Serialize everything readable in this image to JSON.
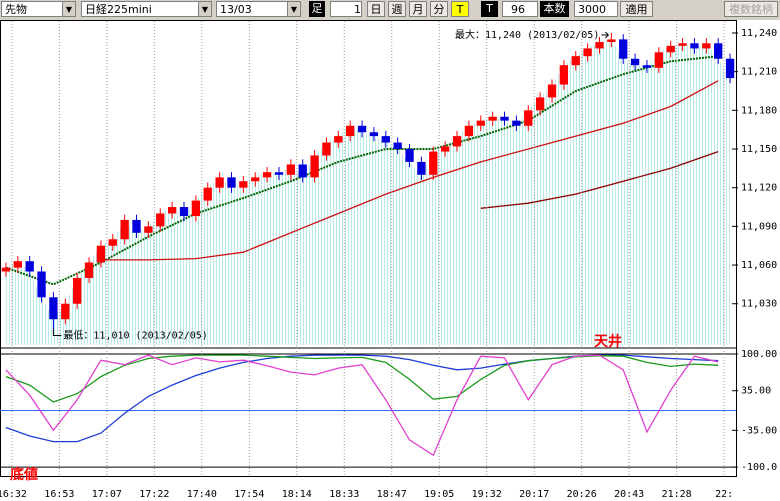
{
  "toolbar": {
    "market": "先物",
    "symbol": "日経225mini",
    "contract": "13/03",
    "bar_label": "足",
    "bar_value": "1",
    "periods": [
      "日",
      "週",
      "月",
      "分"
    ],
    "tick_buttons": [
      "T",
      "T"
    ],
    "count": "96",
    "count_label": "本数",
    "bars": "3000",
    "apply": "適用",
    "multi": "複数銘柄"
  },
  "chart_data": [
    {
      "type": "candlestick",
      "annotations": [
        "最大：11,240 (2013/02/05)",
        "最低：11,010 (2013/02/05)"
      ],
      "x": [
        0,
        2,
        4,
        6,
        8,
        10,
        12,
        14,
        16,
        18,
        20,
        22,
        24,
        26,
        28,
        30,
        32,
        34,
        36,
        38,
        40,
        42,
        44,
        46,
        48,
        50,
        52,
        54,
        56,
        58,
        60,
        62,
        64,
        66,
        68,
        70,
        72,
        74,
        76,
        78,
        80,
        82,
        84,
        86,
        88,
        90,
        92,
        94,
        96,
        98,
        100,
        102,
        104,
        106,
        108,
        110,
        112,
        114,
        116,
        118,
        120,
        122
      ],
      "open": [
        11055,
        11058,
        11063,
        11055,
        11035,
        11018,
        11030,
        11050,
        11062,
        11075,
        11080,
        11095,
        11085,
        11090,
        11100,
        11105,
        11098,
        11110,
        11120,
        11128,
        11120,
        11125,
        11128,
        11132,
        11130,
        11138,
        11128,
        11145,
        11155,
        11160,
        11168,
        11163,
        11160,
        11155,
        11150,
        11140,
        11130,
        11148,
        11152,
        11160,
        11168,
        11172,
        11175,
        11172,
        11168,
        11180,
        11190,
        11200,
        11215,
        11222,
        11228,
        11233,
        11235,
        11220,
        11215,
        11213,
        11225,
        11230,
        11232,
        11228,
        11232,
        11220
      ],
      "high": [
        11062,
        11067,
        11067,
        11059,
        11039,
        11034,
        11054,
        11066,
        11079,
        11084,
        11099,
        11099,
        11094,
        11104,
        11109,
        11109,
        11114,
        11124,
        11132,
        11132,
        11129,
        11132,
        11136,
        11136,
        11142,
        11142,
        11149,
        11159,
        11164,
        11172,
        11172,
        11167,
        11164,
        11159,
        11154,
        11144,
        11152,
        11156,
        11164,
        11172,
        11176,
        11179,
        11179,
        11176,
        11184,
        11194,
        11204,
        11219,
        11226,
        11232,
        11237,
        11240,
        11239,
        11224,
        11219,
        11229,
        11234,
        11236,
        11236,
        11236,
        11236,
        11224
      ],
      "low": [
        11051,
        11054,
        11051,
        11031,
        11010,
        11014,
        11026,
        11046,
        11058,
        11071,
        11076,
        11081,
        11081,
        11086,
        11096,
        11094,
        11094,
        11106,
        11116,
        11116,
        11116,
        11121,
        11124,
        11126,
        11126,
        11124,
        11124,
        11141,
        11151,
        11156,
        11159,
        11156,
        11151,
        11146,
        11136,
        11126,
        11126,
        11144,
        11148,
        11156,
        11164,
        11168,
        11168,
        11164,
        11164,
        11176,
        11186,
        11196,
        11211,
        11218,
        11224,
        11229,
        11216,
        11211,
        11209,
        11209,
        11221,
        11226,
        11224,
        11224,
        11216,
        11201
      ],
      "close": [
        11058,
        11063,
        11055,
        11035,
        11018,
        11030,
        11050,
        11062,
        11075,
        11080,
        11095,
        11085,
        11090,
        11100,
        11105,
        11098,
        11110,
        11120,
        11128,
        11120,
        11125,
        11128,
        11132,
        11130,
        11138,
        11128,
        11145,
        11155,
        11160,
        11168,
        11163,
        11160,
        11155,
        11150,
        11140,
        11130,
        11148,
        11152,
        11160,
        11168,
        11172,
        11175,
        11172,
        11168,
        11180,
        11190,
        11200,
        11215,
        11222,
        11228,
        11233,
        11235,
        11220,
        11215,
        11213,
        11225,
        11230,
        11232,
        11228,
        11232,
        11220,
        11205
      ],
      "up_color": "#ff0000",
      "down_color": "#0000dd",
      "series": [
        {
          "color": "#006400",
          "x": [
            0,
            8,
            16,
            24,
            32,
            40,
            48,
            56,
            64,
            72,
            80,
            88,
            96,
            104,
            112,
            120
          ],
          "values": [
            11058,
            11045,
            11062,
            11082,
            11100,
            11112,
            11125,
            11140,
            11150,
            11150,
            11160,
            11172,
            11195,
            11208,
            11218,
            11222
          ]
        },
        {
          "color": "#d01010",
          "x": [
            0,
            8,
            16,
            24,
            32,
            40,
            48,
            56,
            64,
            72,
            80,
            88,
            96,
            104,
            112,
            120
          ],
          "values": [
            null,
            null,
            11064,
            11064,
            11065,
            11070,
            11085,
            11100,
            11115,
            11128,
            11140,
            11150,
            11160,
            11170,
            11183,
            11203
          ]
        },
        {
          "color": "#8b0000",
          "x": [
            0,
            8,
            16,
            24,
            32,
            40,
            48,
            56,
            64,
            72,
            80,
            88,
            96,
            104,
            112,
            120
          ],
          "values": [
            null,
            null,
            null,
            null,
            null,
            null,
            null,
            null,
            null,
            null,
            11104,
            11108,
            11115,
            11125,
            11135,
            11148
          ]
        }
      ],
      "xlim": [
        -1,
        123
      ],
      "ylim": [
        10998,
        11248.5
      ],
      "yticks": [
        {
          "value": 11240,
          "label": "11,240"
        },
        {
          "value": 11210,
          "label": "11,210"
        },
        {
          "value": 11180,
          "label": "11,180"
        },
        {
          "value": 11150,
          "label": "11,150"
        },
        {
          "value": 11120,
          "label": "11,120"
        },
        {
          "value": 11090,
          "label": "11,090"
        },
        {
          "value": 11060,
          "label": "11,060"
        },
        {
          "value": 11030,
          "label": "11,030"
        }
      ]
    },
    {
      "type": "line",
      "annotations": [
        "天井",
        "底値"
      ],
      "x": [
        0,
        4,
        8,
        12,
        16,
        20,
        24,
        28,
        32,
        36,
        40,
        44,
        48,
        52,
        56,
        60,
        64,
        68,
        72,
        76,
        80,
        84,
        88,
        92,
        96,
        100,
        104,
        108,
        112,
        116,
        120
      ],
      "series": [
        {
          "color": "#1e3cd8",
          "values": [
            -30,
            -45,
            -55,
            -55,
            -40,
            -5,
            25,
            45,
            62,
            75,
            85,
            92,
            96,
            98,
            98,
            98,
            96,
            90,
            80,
            72,
            75,
            82,
            88,
            92,
            96,
            98,
            98,
            95,
            92,
            90,
            88
          ]
        },
        {
          "color": "#1a9a1a",
          "values": [
            60,
            45,
            15,
            30,
            60,
            80,
            92,
            96,
            98,
            98,
            98,
            96,
            94,
            92,
            93,
            94,
            85,
            55,
            20,
            25,
            55,
            80,
            88,
            92,
            95,
            97,
            96,
            85,
            78,
            82,
            80
          ]
        },
        {
          "color": "#e040d0",
          "values": [
            72,
            27,
            -35,
            19,
            89,
            81,
            98,
            81,
            93,
            86,
            89,
            79,
            68,
            63,
            75,
            81,
            19,
            -52,
            -79,
            19,
            96,
            93,
            19,
            81,
            96,
            98,
            72,
            -38,
            36,
            96,
            86
          ]
        }
      ],
      "hline": {
        "value": 0,
        "color": "#3070ff"
      },
      "xlim": [
        -1,
        123
      ],
      "ylim": [
        -114,
        107
      ],
      "yticks": [
        {
          "value": 100,
          "label": "100.00"
        },
        {
          "value": 35,
          "label": "35.00"
        },
        {
          "value": -35,
          "label": "-35.00"
        },
        {
          "value": -100,
          "label": "-100.0"
        }
      ],
      "xticks": [
        {
          "value": 1,
          "label": "16:32"
        },
        {
          "value": 9,
          "label": "16:53"
        },
        {
          "value": 17,
          "label": "17:07"
        },
        {
          "value": 25,
          "label": "17:22"
        },
        {
          "value": 33,
          "label": "17:40"
        },
        {
          "value": 41,
          "label": "17:54"
        },
        {
          "value": 49,
          "label": "18:14"
        },
        {
          "value": 57,
          "label": "18:33"
        },
        {
          "value": 65,
          "label": "18:47"
        },
        {
          "value": 73,
          "label": "19:05"
        },
        {
          "value": 81,
          "label": "19:32"
        },
        {
          "value": 89,
          "label": "20:17"
        },
        {
          "value": 97,
          "label": "20:26"
        },
        {
          "value": 105,
          "label": "20:43"
        },
        {
          "value": 113,
          "label": "21:28"
        },
        {
          "value": 121,
          "label": "22:"
        }
      ]
    }
  ]
}
